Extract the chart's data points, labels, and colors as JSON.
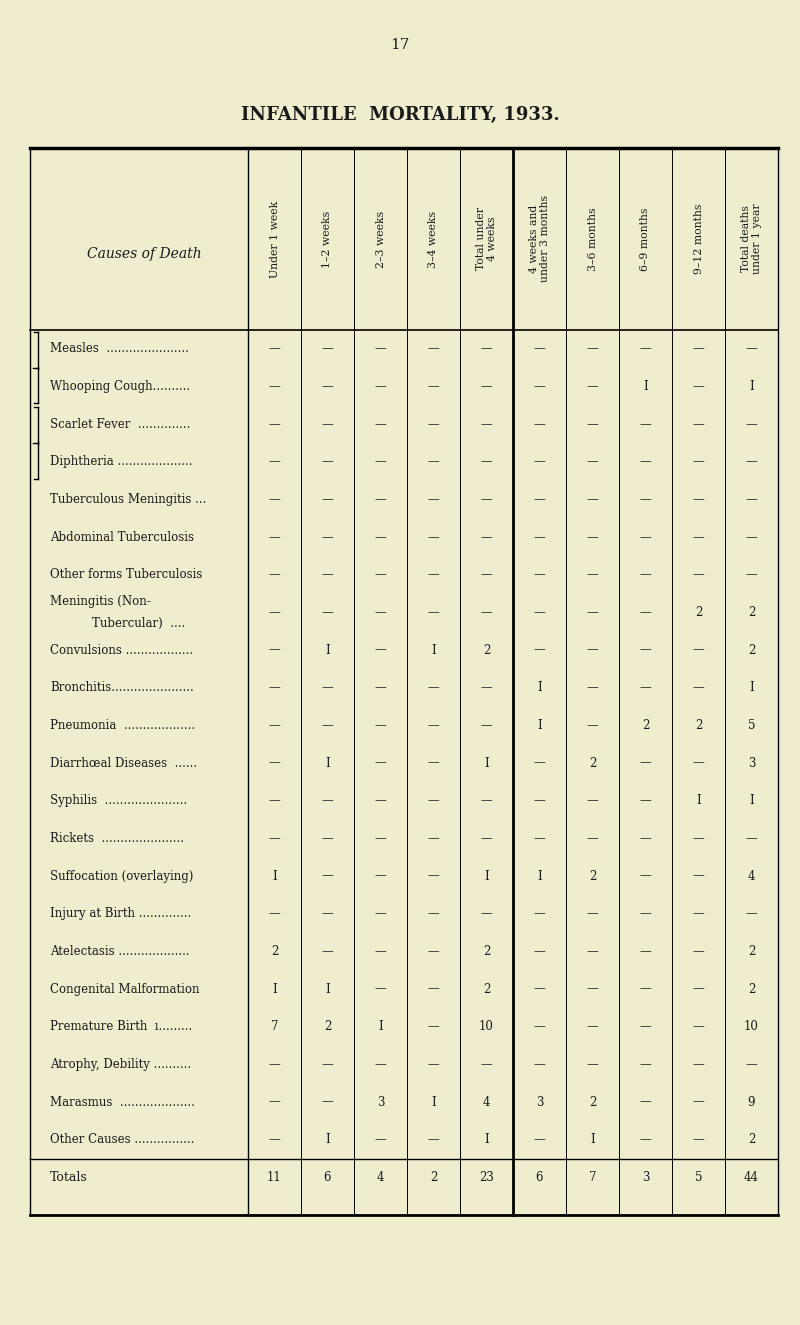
{
  "page_number": "17",
  "title": "INFANTILE  MORTALITY, 1933.",
  "bg_color": "#f0edcf",
  "col_headers": [
    "Under 1 week",
    "1–2 weeks",
    "2–3 weeks",
    "3–4 weeks",
    "Total under\n4 weeks",
    "4 weeks and\nunder 3 months",
    "3–6 months",
    "6–9 months",
    "9–12 months",
    "Total deaths\nunder 1 year"
  ],
  "row_label": "Causes of Death",
  "rows": [
    {
      "cause": "Measles  ......................",
      "indent": 0,
      "bracket": "top_open",
      "values": [
        "—",
        "—",
        "—",
        "—",
        "—",
        "—",
        "—",
        "—",
        "—",
        "—"
      ]
    },
    {
      "cause": "Whooping Cough..........",
      "indent": 0,
      "bracket": "mid",
      "values": [
        "—",
        "—",
        "—",
        "—",
        "—",
        "—",
        "—",
        "I",
        "—",
        "I"
      ]
    },
    {
      "cause": "Scarlet Fever  ..............",
      "indent": 0,
      "bracket": "bot_open",
      "values": [
        "—",
        "—",
        "—",
        "—",
        "—",
        "—",
        "—",
        "—",
        "—",
        "—"
      ]
    },
    {
      "cause": "Diphtheria ....................",
      "indent": 0,
      "bracket": "bot_close",
      "values": [
        "—",
        "—",
        "—",
        "—",
        "—",
        "—",
        "—",
        "—",
        "—",
        "—"
      ]
    },
    {
      "cause": "Tuberculous Meningitis ...",
      "indent": 0,
      "bracket": "none",
      "values": [
        "—",
        "—",
        "—",
        "—",
        "—",
        "—",
        "—",
        "—",
        "—",
        "—"
      ]
    },
    {
      "cause": "Abdominal Tuberculosis",
      "indent": 0,
      "bracket": "none",
      "values": [
        "—",
        "—",
        "—",
        "—",
        "—",
        "—",
        "—",
        "—",
        "—",
        "—"
      ]
    },
    {
      "cause": "Other forms Tuberculosis",
      "indent": 0,
      "bracket": "none",
      "values": [
        "—",
        "—",
        "—",
        "—",
        "—",
        "—",
        "—",
        "—",
        "—",
        "—"
      ]
    },
    {
      "cause": "Meningitis (Non-",
      "cause2": "        Tubercular)  ....",
      "indent": 0,
      "bracket": "none",
      "values": [
        "—",
        "—",
        "—",
        "—",
        "—",
        "—",
        "—",
        "—",
        "2",
        "2"
      ]
    },
    {
      "cause": "Convulsions ..................",
      "indent": 0,
      "bracket": "none",
      "values": [
        "—",
        "I",
        "—",
        "I",
        "2",
        "—",
        "—",
        "—",
        "—",
        "2"
      ]
    },
    {
      "cause": "Bronchitis......................",
      "indent": 0,
      "bracket": "none",
      "values": [
        "—",
        "—",
        "—",
        "—",
        "—",
        "I",
        "—",
        "—",
        "—",
        "I"
      ]
    },
    {
      "cause": "Pneumonia  ...................",
      "indent": 0,
      "bracket": "none",
      "values": [
        "—",
        "—",
        "—",
        "—",
        "—",
        "I",
        "—",
        "2",
        "2",
        "5"
      ]
    },
    {
      "cause": "Diarrhœal Diseases  ......",
      "indent": 0,
      "bracket": "none",
      "values": [
        "—",
        "I",
        "—",
        "—",
        "I",
        "—",
        "2",
        "—",
        "—",
        "3"
      ]
    },
    {
      "cause": "Syphilis  ......................",
      "indent": 0,
      "bracket": "none",
      "values": [
        "—",
        "—",
        "—",
        "—",
        "—",
        "—",
        "—",
        "—",
        "I",
        "I"
      ]
    },
    {
      "cause": "Rickets  ......................",
      "indent": 0,
      "bracket": "none",
      "values": [
        "—",
        "—",
        "—",
        "—",
        "—",
        "—",
        "—",
        "—",
        "—",
        "—"
      ]
    },
    {
      "cause": "Suffocation (overlaying)",
      "indent": 0,
      "bracket": "none",
      "values": [
        "I",
        "—",
        "—",
        "—",
        "I",
        "I",
        "2",
        "—",
        "—",
        "4"
      ]
    },
    {
      "cause": "Injury at Birth ..............",
      "indent": 0,
      "bracket": "none",
      "values": [
        "—",
        "—",
        "—",
        "—",
        "—",
        "—",
        "—",
        "—",
        "—",
        "—"
      ]
    },
    {
      "cause": "Atelectasis ...................",
      "indent": 0,
      "bracket": "none",
      "values": [
        "2",
        "—",
        "—",
        "—",
        "2",
        "—",
        "—",
        "—",
        "—",
        "2"
      ]
    },
    {
      "cause": "Congenital Malformation",
      "indent": 0,
      "bracket": "none",
      "values": [
        "I",
        "I",
        "—",
        "—",
        "2",
        "—",
        "—",
        "—",
        "—",
        "2"
      ]
    },
    {
      "cause": "Premature Birth  ı.........",
      "indent": 0,
      "bracket": "none",
      "values": [
        "7",
        "2",
        "I",
        "—",
        "10",
        "—",
        "—",
        "—",
        "—",
        "10"
      ]
    },
    {
      "cause": "Atrophy, Debility ..........",
      "indent": 0,
      "bracket": "none",
      "values": [
        "—",
        "—",
        "—",
        "—",
        "—",
        "—",
        "—",
        "—",
        "—",
        "—"
      ]
    },
    {
      "cause": "Marasmus  ....................",
      "indent": 0,
      "bracket": "none",
      "values": [
        "—",
        "—",
        "3",
        "I",
        "4",
        "3",
        "2",
        "—",
        "—",
        "9"
      ]
    },
    {
      "cause": "Other Causes ................",
      "indent": 0,
      "bracket": "none",
      "values": [
        "—",
        "I",
        "—",
        "—",
        "I",
        "—",
        "I",
        "—",
        "—",
        "2"
      ]
    }
  ],
  "totals_label": "Totals",
  "totals": [
    "11",
    "6",
    "4",
    "2",
    "23",
    "6",
    "7",
    "3",
    "5",
    "44"
  ]
}
